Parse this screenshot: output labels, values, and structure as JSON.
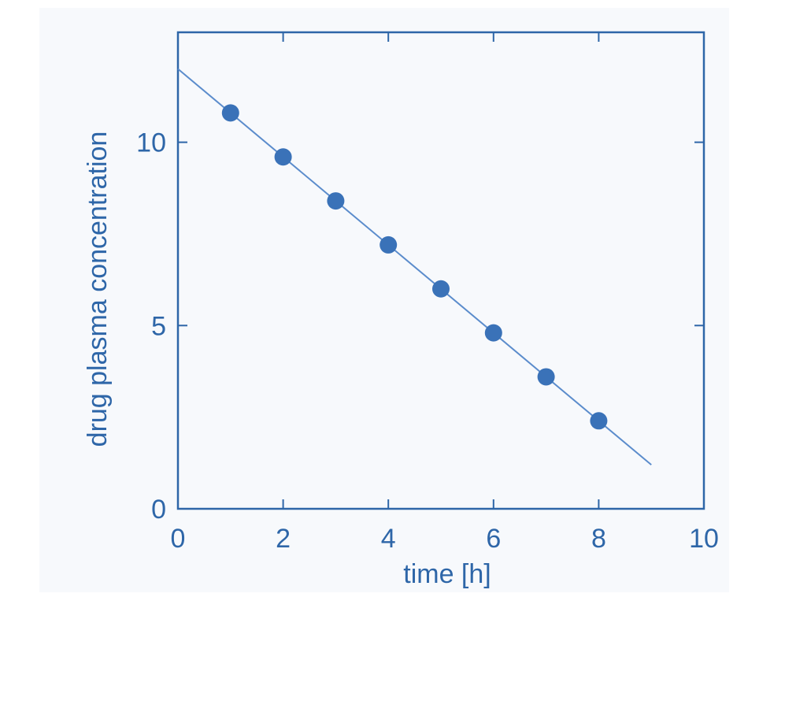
{
  "colors": {
    "panel_background": "#f7f9fc",
    "axis": "#2e66a8",
    "marker": "#3a72b8",
    "fit_line": "#5b8ccc"
  },
  "chart_data": {
    "type": "scatter",
    "xlabel": "time [h]",
    "ylabel": "drug plasma concentration",
    "xlim": [
      0,
      10
    ],
    "ylim": [
      0,
      13
    ],
    "x_ticks": [
      0,
      2,
      4,
      6,
      8,
      10
    ],
    "y_ticks": [
      0,
      5,
      10
    ],
    "grid": false,
    "series": [
      {
        "kind": "points",
        "x": [
          1,
          2,
          3,
          4,
          5,
          6,
          7,
          8
        ],
        "y": [
          10.8,
          9.6,
          8.4,
          7.2,
          6.0,
          4.8,
          3.6,
          2.4
        ]
      },
      {
        "kind": "fit-line",
        "x": [
          0,
          9
        ],
        "y": [
          12.0,
          1.2
        ]
      }
    ]
  }
}
